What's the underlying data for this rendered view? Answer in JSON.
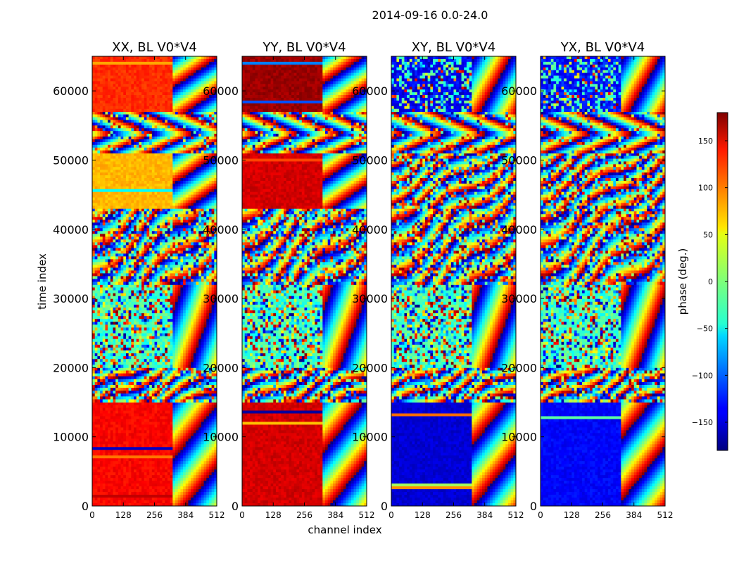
{
  "figure": {
    "suptitle": "2014-09-16 0.0-24.0",
    "xlabel": "channel index",
    "ylabel": "time index",
    "colorbar_label": "phase (deg.)"
  },
  "chart_data": [
    {
      "type": "heatmap",
      "title": "XX, BL V0*V4",
      "xlabel": "channel index",
      "ylabel": "time index",
      "xlim": [
        0,
        512
      ],
      "ylim": [
        0,
        65000
      ],
      "xticks": [
        0,
        128,
        256,
        384,
        512
      ],
      "yticks": [
        0,
        10000,
        20000,
        30000,
        40000,
        50000,
        60000
      ],
      "baseline_phase": 120,
      "bands": [
        {
          "from": 0,
          "to": 15000,
          "kind": "const",
          "phase": 135
        },
        {
          "from": 15000,
          "to": 20000,
          "kind": "fringe",
          "phase": 0
        },
        {
          "from": 20000,
          "to": 32000,
          "kind": "noise",
          "phase": 0
        },
        {
          "from": 32000,
          "to": 43000,
          "kind": "fringe",
          "phase": 0
        },
        {
          "from": 43000,
          "to": 51000,
          "kind": "const",
          "phase": 70
        },
        {
          "from": 51000,
          "to": 57000,
          "kind": "chevron",
          "phase": 0
        },
        {
          "from": 57000,
          "to": 65000,
          "kind": "const",
          "phase": 120
        }
      ]
    },
    {
      "type": "heatmap",
      "title": "YY, BL V0*V4",
      "xlabel": "channel index",
      "ylabel": "time index",
      "xlim": [
        0,
        512
      ],
      "ylim": [
        0,
        65000
      ],
      "xticks": [
        0,
        128,
        256,
        384,
        512
      ],
      "yticks": [
        0,
        10000,
        20000,
        30000,
        40000,
        50000,
        60000
      ],
      "baseline_phase": 150,
      "bands": [
        {
          "from": 0,
          "to": 15000,
          "kind": "const",
          "phase": 150
        },
        {
          "from": 15000,
          "to": 20000,
          "kind": "fringe",
          "phase": 0
        },
        {
          "from": 20000,
          "to": 32000,
          "kind": "noise",
          "phase": 0
        },
        {
          "from": 32000,
          "to": 43000,
          "kind": "fringe",
          "phase": 0
        },
        {
          "from": 43000,
          "to": 51000,
          "kind": "const",
          "phase": 150
        },
        {
          "from": 51000,
          "to": 57000,
          "kind": "chevron",
          "phase": 0
        },
        {
          "from": 57000,
          "to": 65000,
          "kind": "const",
          "phase": 170
        }
      ]
    },
    {
      "type": "heatmap",
      "title": "XY, BL V0*V4",
      "xlabel": "channel index",
      "ylabel": "time index",
      "xlim": [
        0,
        512
      ],
      "ylim": [
        0,
        65000
      ],
      "xticks": [
        0,
        128,
        256,
        384,
        512
      ],
      "yticks": [
        0,
        10000,
        20000,
        30000,
        40000,
        50000,
        60000
      ],
      "baseline_phase": -140,
      "bands": [
        {
          "from": 0,
          "to": 15000,
          "kind": "const",
          "phase": -150
        },
        {
          "from": 15000,
          "to": 20000,
          "kind": "fringe",
          "phase": 0
        },
        {
          "from": 20000,
          "to": 32000,
          "kind": "noise",
          "phase": 0
        },
        {
          "from": 32000,
          "to": 43000,
          "kind": "fringe",
          "phase": 0
        },
        {
          "from": 43000,
          "to": 51000,
          "kind": "fringe",
          "phase": 0
        },
        {
          "from": 51000,
          "to": 57000,
          "kind": "chevron",
          "phase": 0
        },
        {
          "from": 57000,
          "to": 65000,
          "kind": "noise",
          "phase": -140
        }
      ]
    },
    {
      "type": "heatmap",
      "title": "YX, BL V0*V4",
      "xlabel": "channel index",
      "ylabel": "time index",
      "xlim": [
        0,
        512
      ],
      "ylim": [
        0,
        65000
      ],
      "xticks": [
        0,
        128,
        256,
        384,
        512
      ],
      "yticks": [
        0,
        10000,
        20000,
        30000,
        40000,
        50000,
        60000
      ],
      "baseline_phase": -130,
      "bands": [
        {
          "from": 0,
          "to": 15000,
          "kind": "const",
          "phase": -135
        },
        {
          "from": 15000,
          "to": 20000,
          "kind": "fringe",
          "phase": 0
        },
        {
          "from": 20000,
          "to": 32000,
          "kind": "noise",
          "phase": 0
        },
        {
          "from": 32000,
          "to": 43000,
          "kind": "fringe",
          "phase": 0
        },
        {
          "from": 43000,
          "to": 51000,
          "kind": "fringe",
          "phase": 0
        },
        {
          "from": 51000,
          "to": 57000,
          "kind": "chevron",
          "phase": 0
        },
        {
          "from": 57000,
          "to": 65000,
          "kind": "noise",
          "phase": -130
        }
      ]
    }
  ],
  "colorbar": {
    "vmin": -180,
    "vmax": 180,
    "ticks": [
      -150,
      -100,
      -50,
      0,
      50,
      100,
      150
    ],
    "tick_labels": [
      "−150",
      "−100",
      "−50",
      "0",
      "50",
      "100",
      "150"
    ],
    "colormap": "jet"
  }
}
